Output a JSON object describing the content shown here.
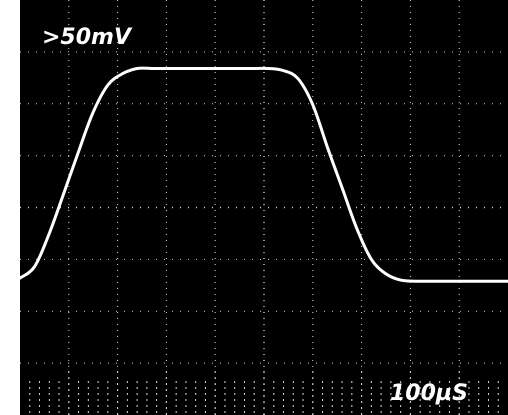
{
  "chart_data": {
    "type": "line",
    "title": "",
    "labels": {
      "volts_per_div": ">50mV",
      "time_per_div": "100µS"
    },
    "xlabel": "",
    "ylabel": "",
    "x_unit": "µs",
    "y_unit": "mV",
    "grid": true,
    "xlim": [
      0,
      1000
    ],
    "ylim": [
      -200,
      200
    ],
    "series": [
      {
        "values_note_omitted": true,
        "x": [
          0,
          30,
          60,
          90,
          120,
          150,
          180,
          210,
          240,
          270,
          300,
          330,
          360,
          390,
          420,
          450,
          480,
          510,
          540,
          570,
          600,
          630,
          660,
          690,
          720,
          750,
          780,
          810,
          840,
          870,
          900,
          930,
          960,
          990,
          1000
        ],
        "y": [
          -68,
          -57,
          -25,
          14,
          54,
          92,
          118,
          129,
          134,
          134,
          134,
          134,
          134,
          134,
          134,
          134,
          134,
          134,
          132,
          124,
          99,
          58,
          19,
          -20,
          -50,
          -64,
          -70,
          -71,
          -71,
          -71,
          -71,
          -71,
          -71,
          -71,
          -71
        ]
      }
    ]
  },
  "colors": {
    "screen": "#000000",
    "trace": "#ffffff",
    "grid": "#d8d8d8",
    "frame": "#ffffff"
  }
}
